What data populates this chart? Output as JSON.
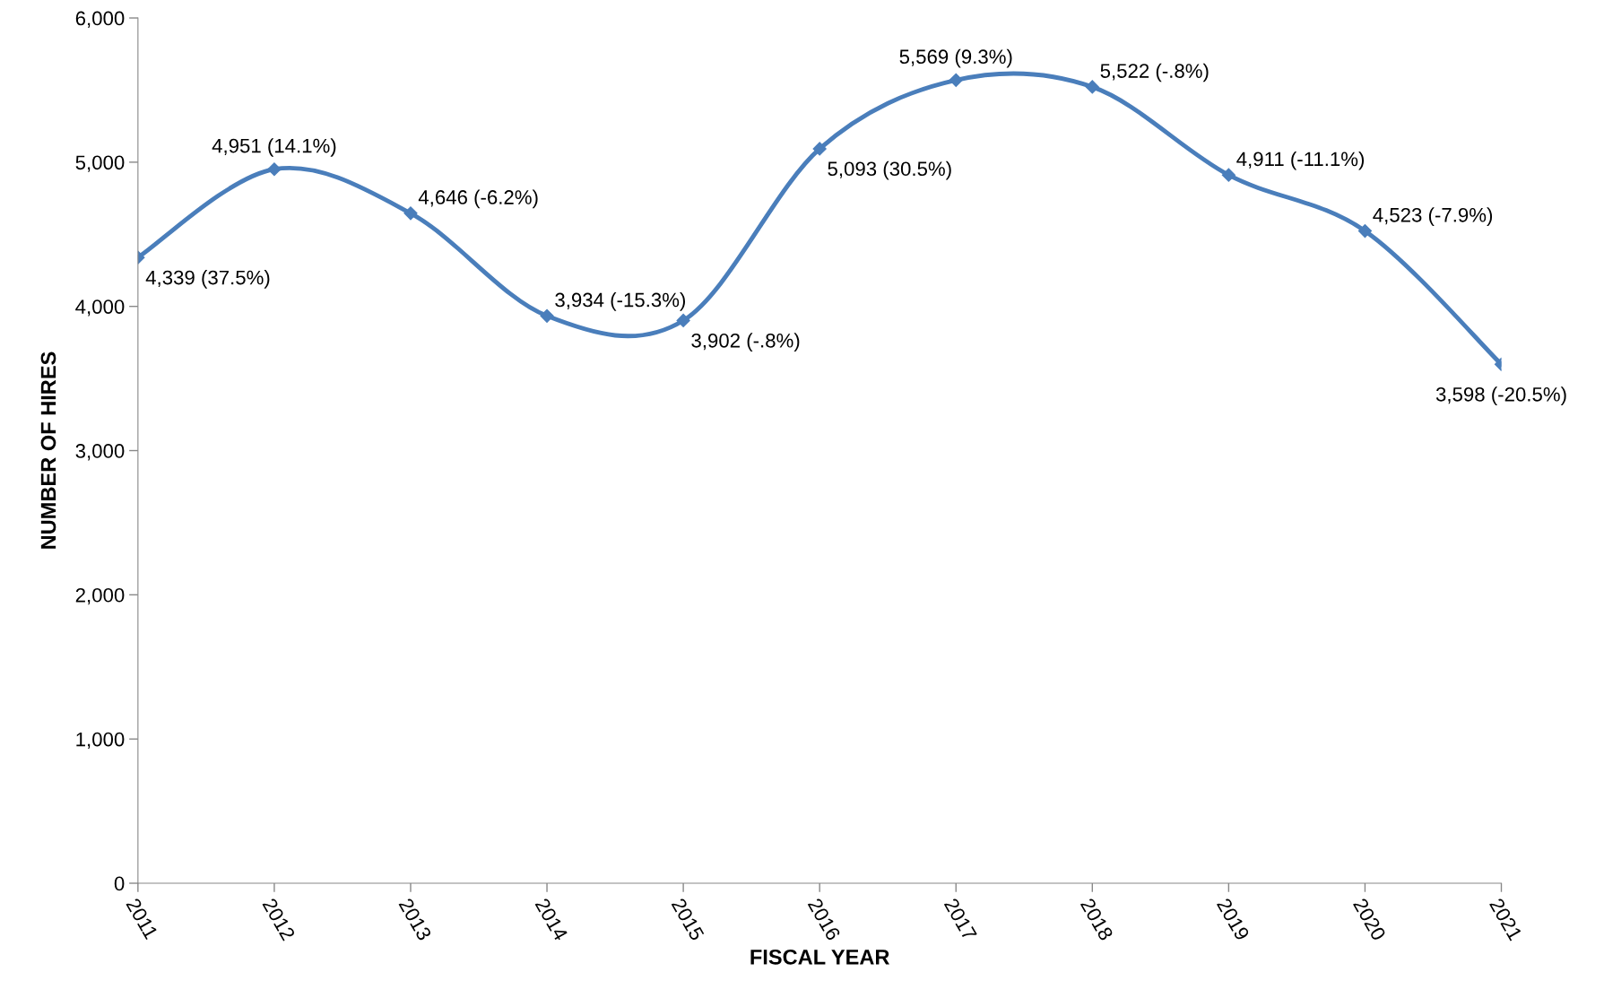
{
  "chart_data": {
    "type": "line",
    "xlabel": "FISCAL YEAR",
    "ylabel": "NUMBER OF HIRES",
    "categories": [
      "2011",
      "2012",
      "2013",
      "2014",
      "2015",
      "2016",
      "2017",
      "2018",
      "2019",
      "2020",
      "2021"
    ],
    "series": [
      {
        "color": "#4a7ebb",
        "values": [
          4339,
          4951,
          4646,
          3934,
          3902,
          5093,
          5569,
          5522,
          4911,
          4523,
          3598
        ],
        "value_labels": [
          "4,339 (37.5%)",
          "4,951 (14.1%)",
          "4,646 (-6.2%)",
          "3,934 (-15.3%)",
          "3,902 (-.8%)",
          "5,093 (30.5%)",
          "5,569 (9.3%)",
          "5,522 (-.8%)",
          "4,911 (-11.1%)",
          "4,523 (-7.9%)",
          "3,598 (-20.5%)"
        ]
      }
    ],
    "ylim": [
      0,
      6000
    ],
    "yticks": [
      0,
      {
        "value": 1000,
        "label": "1,000"
      },
      {
        "value": 2000,
        "label": "2,000"
      },
      {
        "value": 3000,
        "label": "3,000"
      },
      {
        "value": 4000,
        "label": "4,000"
      },
      {
        "value": 5000,
        "label": "5,000"
      },
      {
        "value": 6000,
        "label": "6,000"
      }
    ],
    "marker": "diamond",
    "line_style": "solid",
    "grid": false,
    "legend": false
  }
}
